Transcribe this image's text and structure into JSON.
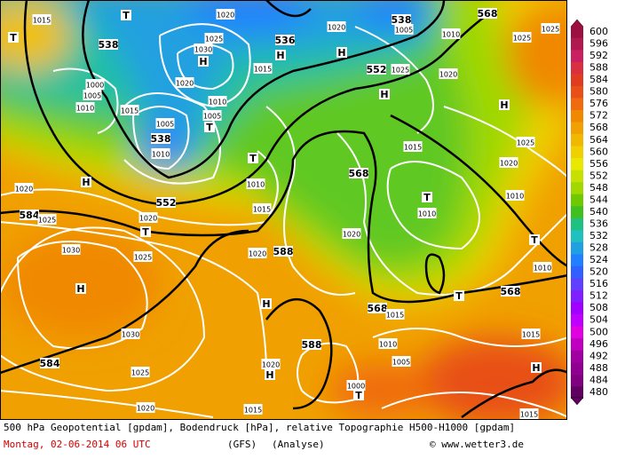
{
  "map_labels": [
    "1015",
    "T",
    "T",
    "538",
    "1020",
    "1025",
    "1030",
    "H",
    "1020",
    "536",
    "H",
    "1020",
    "H",
    "538",
    "1005",
    "568",
    "1010",
    "1025",
    "1025",
    "1015",
    "552",
    "1025",
    "1020",
    "H",
    "H",
    "1000",
    "1005",
    "1010",
    "1015",
    "1005",
    "1005",
    "T",
    "1010",
    "538",
    "1010",
    "T",
    "1015",
    "1025",
    "1020",
    "568",
    "H",
    "1010",
    "1020",
    "552",
    "T",
    "1010",
    "1015",
    "1020",
    "584",
    "1025",
    "T",
    "1010",
    "1020",
    "T",
    "1030",
    "1025",
    "1020",
    "588",
    "1010",
    "H",
    "T",
    "568",
    "H",
    "568",
    "1015",
    "1030",
    "588",
    "1010",
    "1015",
    "584",
    "1025",
    "1020",
    "H",
    "1005",
    "H",
    "1000",
    "T",
    "1020",
    "1015",
    "1015"
  ],
  "legend": {
    "values": [
      600,
      596,
      592,
      588,
      584,
      580,
      576,
      572,
      568,
      564,
      560,
      556,
      552,
      548,
      544,
      540,
      536,
      532,
      528,
      524,
      520,
      516,
      512,
      508,
      504,
      500,
      496,
      492,
      488,
      484,
      480
    ],
    "colors": [
      "#9a1040",
      "#b01850",
      "#c82060",
      "#d83040",
      "#e03c20",
      "#e85018",
      "#f06a10",
      "#f08800",
      "#f0a000",
      "#f0b800",
      "#f0d000",
      "#e8e800",
      "#c8e000",
      "#a0d800",
      "#70c800",
      "#40c020",
      "#20c080",
      "#20c0c0",
      "#20a0e0",
      "#2080ff",
      "#3060ff",
      "#6040ff",
      "#8020ff",
      "#a000ff",
      "#c000ff",
      "#e000e0",
      "#c000c0",
      "#a000a0",
      "#900090",
      "#800080",
      "#600060"
    ]
  },
  "footer": {
    "description": "500 hPa Geopotential [gpdam], Bodendruck [hPa], relative Topographie H500-H1000 [gpdam]",
    "date": "Montag, 02-06-2014  06 UTC",
    "model": "(GFS)",
    "kind": "(Analyse)",
    "copyright": "© www.wetter3.de"
  }
}
